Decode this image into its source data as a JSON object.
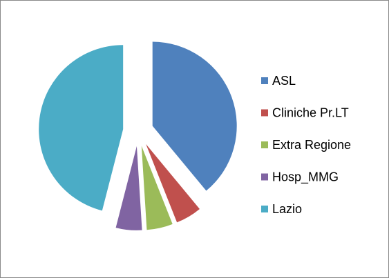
{
  "chart_data": {
    "type": "pie",
    "categories": [
      "ASL",
      "Cliniche Pr.LT",
      "Extra Regione",
      "Hosp_MMG",
      "Lazio"
    ],
    "values": [
      39,
      5,
      5,
      5,
      46
    ],
    "colors": [
      "#4f81bd",
      "#c0504d",
      "#9bbb59",
      "#8064a2",
      "#4bacc6"
    ],
    "exploded": true,
    "legend": "right"
  }
}
